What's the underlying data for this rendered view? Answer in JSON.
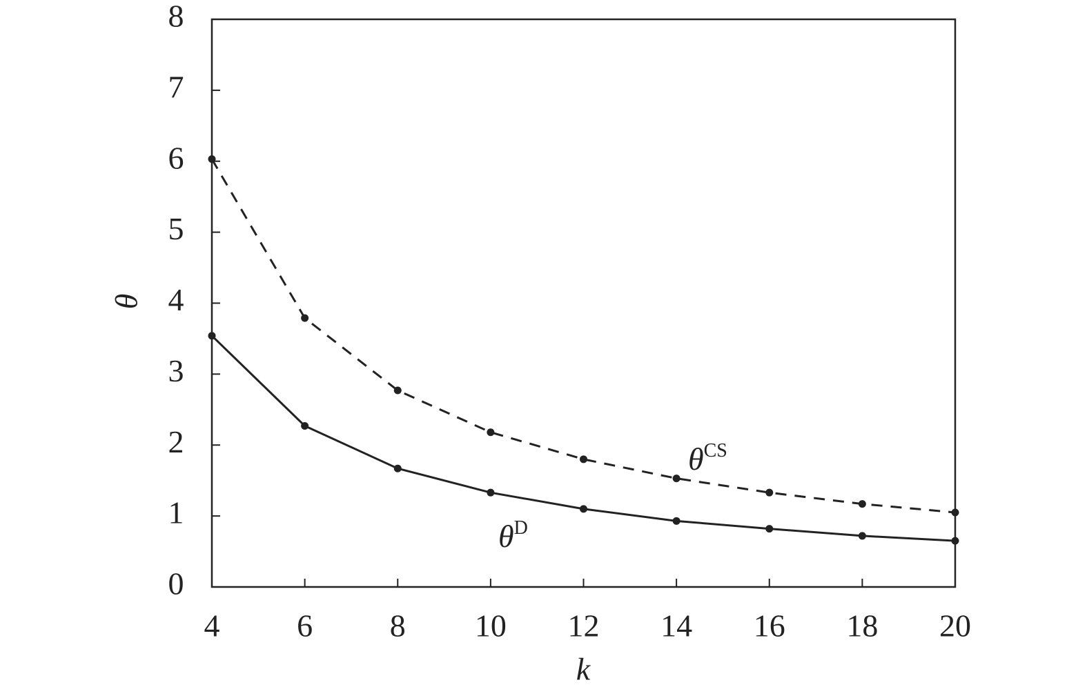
{
  "chart_data": {
    "type": "line",
    "x_label": "k",
    "y_label": "θ",
    "x": [
      4,
      6,
      8,
      10,
      12,
      14,
      16,
      18,
      20
    ],
    "series": [
      {
        "label": [
          "θ",
          "CS"
        ],
        "color": "#222222",
        "dashed": true,
        "values": [
          6.03,
          3.79,
          2.77,
          2.18,
          1.8,
          1.53,
          1.33,
          1.17,
          1.05
        ]
      },
      {
        "label": [
          "θ",
          "D"
        ],
        "color": "#222222",
        "dashed": false,
        "values": [
          3.54,
          2.27,
          1.67,
          1.33,
          1.1,
          0.93,
          0.82,
          0.72,
          0.65
        ]
      }
    ],
    "xlim": [
      4,
      20
    ],
    "xticks": [
      4,
      6,
      8,
      10,
      12,
      14,
      16,
      18,
      20
    ],
    "ylim": [
      0,
      8
    ],
    "yticks": [
      0,
      1,
      2,
      3,
      4,
      5,
      6,
      7,
      8
    ],
    "grid": false
  }
}
